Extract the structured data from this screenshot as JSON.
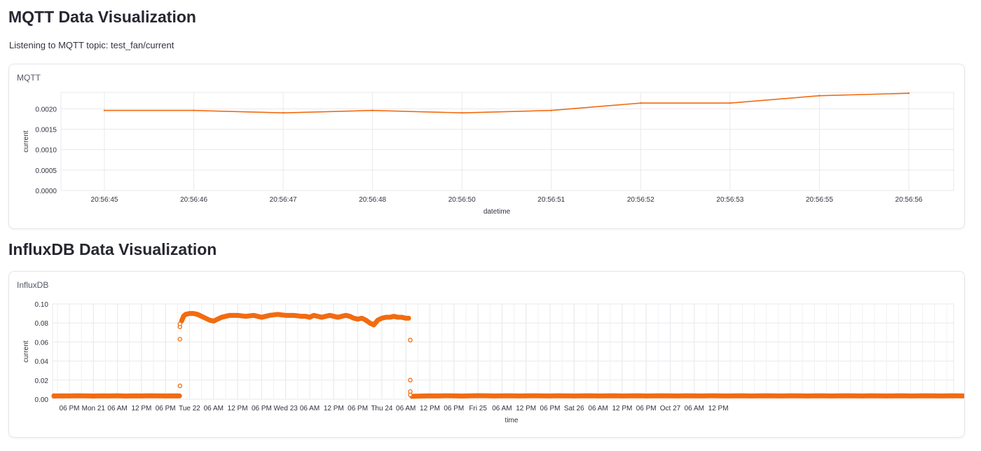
{
  "page": {
    "mqtt_heading": "MQTT Data Visualization",
    "listening_text": "Listening to MQTT topic: test_fan/current",
    "influx_heading": "InfluxDB Data Visualization"
  },
  "colors": {
    "series": "#f26b10",
    "grid": "#e9e9ee",
    "axis_text": "#31333f"
  },
  "chart_data": [
    {
      "type": "line",
      "title": "MQTT",
      "xlabel": "datetime",
      "ylabel": "current",
      "x": [
        "20:56:45",
        "20:56:46",
        "20:56:47",
        "20:56:48",
        "20:56:50",
        "20:56:51",
        "20:56:52",
        "20:56:53",
        "20:56:55",
        "20:56:56"
      ],
      "y": [
        0.00196,
        0.00196,
        0.0019,
        0.00196,
        0.0019,
        0.00196,
        0.00214,
        0.00214,
        0.00232,
        0.00238
      ],
      "yticks": [
        "0.0000",
        "0.0005",
        "0.0010",
        "0.0015",
        "0.0020"
      ],
      "ylim": [
        0,
        0.0024
      ],
      "grid": true
    },
    {
      "type": "scatter",
      "title": "InfluxDB",
      "xlabel": "time",
      "ylabel": "current",
      "xticks": [
        "06 PM",
        "Mon 21",
        "06 AM",
        "12 PM",
        "06 PM",
        "Tue 22",
        "06 AM",
        "12 PM",
        "06 PM",
        "Wed 23",
        "06 AM",
        "12 PM",
        "06 PM",
        "Thu 24",
        "06 AM",
        "12 PM",
        "06 PM",
        "Fri 25",
        "06 AM",
        "12 PM",
        "06 PM",
        "Sat 26",
        "06 AM",
        "12 PM",
        "06 PM",
        "Oct 27",
        "06 AM",
        "12 PM"
      ],
      "yticks": [
        "0.00",
        "0.02",
        "0.04",
        "0.06",
        "0.08",
        "0.10"
      ],
      "ylim": [
        0,
        0.1
      ],
      "grid": true,
      "segments": [
        {
          "x_hours": [
            -9.6,
            -8,
            -6,
            -4,
            -2,
            0,
            2,
            4,
            6,
            8,
            10,
            12,
            14,
            16,
            18,
            20,
            22,
            24,
            26,
            26.2,
            26.8,
            27.5
          ],
          "y": [
            0.0035,
            0.0032,
            0.0036,
            0.0033,
            0.0035,
            0.0034,
            0.0036,
            0.0035,
            0.0033,
            0.0035,
            0.0034,
            0.0036,
            0.0033,
            0.0035,
            0.0034,
            0.0036,
            0.0035,
            0.0034,
            0.0035,
            0.0034,
            0.0035,
            0.0034
          ]
        },
        {
          "x_hours": [
            28,
            28.5,
            29,
            30,
            31,
            32,
            33,
            34,
            35,
            36,
            37,
            38,
            39,
            40,
            42,
            44,
            46,
            48,
            50,
            52,
            54,
            56,
            58,
            59,
            60,
            61,
            62,
            63,
            64,
            65,
            66,
            67,
            68,
            69,
            70,
            71,
            72,
            73,
            74,
            75,
            76,
            77,
            78,
            79,
            80,
            81,
            82,
            83,
            84,
            84.7
          ],
          "y": [
            0.082,
            0.087,
            0.089,
            0.09,
            0.09,
            0.089,
            0.087,
            0.085,
            0.083,
            0.082,
            0.084,
            0.086,
            0.087,
            0.088,
            0.088,
            0.087,
            0.088,
            0.086,
            0.088,
            0.089,
            0.088,
            0.088,
            0.087,
            0.087,
            0.086,
            0.088,
            0.087,
            0.086,
            0.087,
            0.088,
            0.087,
            0.086,
            0.087,
            0.088,
            0.087,
            0.085,
            0.084,
            0.085,
            0.083,
            0.08,
            0.078,
            0.083,
            0.085,
            0.086,
            0.086,
            0.087,
            0.086,
            0.086,
            0.085,
            0.085
          ]
        },
        {
          "x_hours": [
            85.5,
            88,
            90,
            92,
            94,
            96,
            98,
            100,
            102,
            104,
            106,
            108,
            110,
            112,
            114,
            116,
            118,
            120,
            122,
            124,
            126,
            128,
            130,
            132,
            134,
            136,
            138,
            140,
            142,
            144,
            146,
            148,
            150,
            152,
            154,
            156,
            158,
            160,
            162,
            164,
            166,
            168,
            170,
            172,
            174,
            176,
            178,
            180,
            182,
            184,
            186,
            188,
            190,
            192,
            194,
            196,
            198,
            200,
            202,
            204,
            206,
            208,
            210,
            212,
            214,
            216,
            218,
            220,
            222,
            224,
            226,
            228,
            230,
            232,
            234,
            236,
            238
          ],
          "y": [
            0.003,
            0.0033,
            0.0035,
            0.0034,
            0.0036,
            0.0035,
            0.0033,
            0.0035,
            0.0037,
            0.0036,
            0.0034,
            0.0035,
            0.0036,
            0.0034,
            0.0035,
            0.0036,
            0.0035,
            0.0034,
            0.0036,
            0.0035,
            0.0034,
            0.0035,
            0.0036,
            0.0034,
            0.0035,
            0.0036,
            0.0034,
            0.0035,
            0.0036,
            0.0034,
            0.0035,
            0.0036,
            0.0035,
            0.0034,
            0.0036,
            0.0035,
            0.0034,
            0.0036,
            0.0035,
            0.0034,
            0.0035,
            0.0036,
            0.0034,
            0.0035,
            0.0036,
            0.0035,
            0.0034,
            0.0036,
            0.0035,
            0.0034,
            0.0035,
            0.0036,
            0.0034,
            0.0035,
            0.0036,
            0.0035,
            0.0034,
            0.0036,
            0.0035,
            0.0034,
            0.0035,
            0.0036,
            0.0034,
            0.0035,
            0.0036,
            0.0035,
            0.0034,
            0.0036,
            0.0035,
            0.0034,
            0.0035,
            0.0036,
            0.0034,
            0.0035,
            0.0036,
            0.0035,
            0.0034
          ]
        }
      ],
      "outlier_points": [
        {
          "x_hours": 27.6,
          "y": 0.076
        },
        {
          "x_hours": 27.6,
          "y": 0.079
        },
        {
          "x_hours": 27.6,
          "y": 0.063
        },
        {
          "x_hours": 27.6,
          "y": 0.014
        },
        {
          "x_hours": 85.1,
          "y": 0.062
        },
        {
          "x_hours": 85.1,
          "y": 0.02
        },
        {
          "x_hours": 85.1,
          "y": 0.008
        },
        {
          "x_hours": 85.1,
          "y": 0.0045
        }
      ]
    }
  ]
}
